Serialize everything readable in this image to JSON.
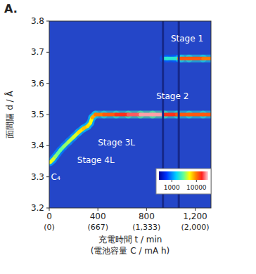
{
  "chart_data": {
    "type": "line",
    "title": "A.",
    "x_label": "充電時間 t / min",
    "x_label2": "(電池容量 C / mA h)",
    "y_label": "面間隔 d / Å",
    "xlim": [
      0,
      1330
    ],
    "ylim": [
      3.2,
      3.8
    ],
    "xticks": [
      {
        "value": 0,
        "label": "0",
        "sublabel": "(0)"
      },
      {
        "value": 400,
        "label": "400",
        "sublabel": "(667)"
      },
      {
        "value": 800,
        "label": "800",
        "sublabel": "(1,333)"
      },
      {
        "value": 1200,
        "label": "1,200",
        "sublabel": "(2,000)"
      }
    ],
    "yticks": [
      3.2,
      3.3,
      3.4,
      3.5,
      3.6,
      3.7,
      3.8
    ],
    "series": [
      {
        "x": [
          0,
          20,
          40,
          60,
          80,
          100,
          140,
          180,
          220,
          260,
          300,
          330,
          345,
          360,
          400,
          500,
          600,
          700,
          800,
          900,
          1000,
          1100,
          1200,
          1330
        ],
        "values": [
          3.345,
          3.35,
          3.36,
          3.37,
          3.38,
          3.39,
          3.405,
          3.42,
          3.435,
          3.45,
          3.46,
          3.465,
          3.48,
          3.5,
          3.5,
          3.5,
          3.5,
          3.5,
          3.5,
          3.5,
          3.5,
          3.5,
          3.5,
          3.5
        ],
        "intensity": [
          3000,
          5000,
          4500,
          3500,
          3000,
          3000,
          3500,
          4000,
          4500,
          6000,
          7000,
          6000,
          5000,
          8000,
          10000,
          12000,
          15000,
          20000,
          25000,
          25000,
          15000,
          12000,
          12000,
          12000
        ]
      },
      {
        "x": [
          940,
          1000,
          1060,
          1070,
          1100,
          1200,
          1330
        ],
        "values": [
          3.68,
          3.68,
          3.68,
          3.68,
          3.68,
          3.68,
          3.68
        ],
        "intensity": [
          2000,
          2000,
          2000,
          8000,
          12000,
          12000,
          10000
        ]
      }
    ],
    "annotations": [
      {
        "text": "C₄",
        "x": 15,
        "y": 3.29
      },
      {
        "text": "Stage 4L",
        "x": 230,
        "y": 3.345
      },
      {
        "text": "Stage 3L",
        "x": 400,
        "y": 3.4
      },
      {
        "text": "Stage 2",
        "x": 880,
        "y": 3.55
      },
      {
        "text": "Stage 1",
        "x": 1000,
        "y": 3.735
      }
    ],
    "vlines": [
      935,
      1065
    ],
    "colorbar": {
      "lim": [
        300,
        30000
      ],
      "ticks": [
        1000,
        10000
      ],
      "log": true
    }
  }
}
